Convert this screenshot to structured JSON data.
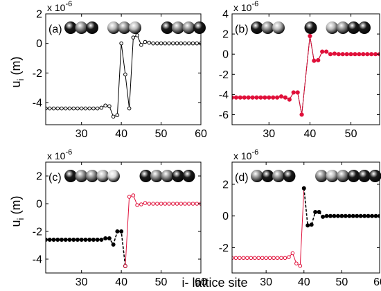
{
  "figure": {
    "shared_ylabel": "u",
    "shared_ylabel_sub": "i",
    "shared_ylabel_unit": " (m)",
    "shared_xlabel": "i- lattice site"
  },
  "chart_data": [
    {
      "type": "line",
      "panel_label": "(a)",
      "exponent_label": "x 10",
      "exponent_power": "-6",
      "xlim": [
        21,
        60
      ],
      "ylim": [
        -5.5,
        2
      ],
      "xticks": [
        30,
        40,
        50,
        60
      ],
      "yticks": [
        -4,
        -2,
        0,
        2
      ],
      "ytick_labels": [
        "-4",
        "-2",
        "0",
        "2"
      ],
      "ylabel_shown": true,
      "spheres": [
        "#1a1a1a",
        "#8c8c8c",
        "#1a1a1a",
        null,
        "#b8b8b8",
        "#8c8c8c",
        "#b8b8b8",
        null,
        null,
        "#1a1a1a",
        "#8c8c8c",
        "#8c8c8c",
        "#1a1a1a"
      ],
      "series": [
        {
          "color": "#000000",
          "marker_fill": "#ffffff",
          "marker_size": 2.3,
          "line_width": 1.0,
          "dashed": false,
          "x": [
            21,
            22,
            23,
            24,
            25,
            26,
            27,
            28,
            29,
            30,
            31,
            32,
            33,
            34,
            35,
            36,
            37,
            38,
            39,
            40,
            41,
            42,
            43,
            44,
            45,
            46,
            47,
            48,
            49,
            50,
            51,
            52,
            53,
            54,
            55,
            56,
            57,
            58,
            59,
            60
          ],
          "y": [
            -4.4,
            -4.4,
            -4.4,
            -4.4,
            -4.4,
            -4.4,
            -4.4,
            -4.4,
            -4.4,
            -4.4,
            -4.4,
            -4.4,
            -4.4,
            -4.4,
            -4.35,
            -4.2,
            -4.25,
            -4.95,
            -4.85,
            0,
            -2.1,
            -4.4,
            0.4,
            0.55,
            -0.1,
            0.1,
            0.05,
            0,
            0,
            0,
            0,
            0,
            0,
            0,
            0,
            0,
            0,
            0,
            0,
            0
          ]
        }
      ]
    },
    {
      "type": "line",
      "panel_label": "(b)",
      "exponent_label": "x 10",
      "exponent_power": "-6",
      "xlim": [
        21,
        57
      ],
      "ylim": [
        -7,
        4
      ],
      "xticks": [
        30,
        40,
        50
      ],
      "yticks": [
        -6,
        -4,
        -2,
        0,
        2,
        4
      ],
      "ytick_labels": [
        "-6",
        "-4",
        "-2",
        "0",
        "2",
        "4"
      ],
      "ylabel_shown": false,
      "spheres": [
        "#1a1a1a",
        "#8c8c8c",
        "#b8b8b8",
        null,
        null,
        "#1a1a1a",
        null,
        "#b8b8b8",
        "#8c8c8c",
        "#1a1a1a",
        "#1a1a1a"
      ],
      "series": [
        {
          "color": "#000000",
          "marker_fill": "#000000",
          "marker_size": 0,
          "line_width": 1.0,
          "dashed": false,
          "x": [
            21,
            22,
            23,
            24,
            25,
            26,
            27,
            28,
            29,
            30,
            31,
            32,
            33,
            34,
            35,
            36,
            37,
            38,
            39,
            40,
            41,
            42,
            43,
            44,
            45,
            46,
            47,
            48,
            49,
            50,
            51,
            52,
            53,
            54,
            55,
            56,
            57
          ],
          "y": [
            -4.3,
            -4.3,
            -4.3,
            -4.3,
            -4.3,
            -4.3,
            -4.3,
            -4.3,
            -4.3,
            -4.3,
            -4.3,
            -4.3,
            -4.2,
            -4.3,
            -4.5,
            -3.8,
            -3.8,
            -6.0,
            -2.1,
            1.8,
            -0.65,
            -0.6,
            0.25,
            0.25,
            0,
            0.05,
            0,
            0,
            0,
            0,
            0,
            0,
            0,
            0,
            0,
            0,
            0
          ]
        },
        {
          "color": "#e0103a",
          "marker_fill": "#e0103a",
          "marker_size": 2.6,
          "line_width": 1.0,
          "dashed": false,
          "x": [
            21,
            22,
            23,
            24,
            25,
            26,
            27,
            28,
            29,
            30,
            31,
            32,
            33,
            34,
            35,
            36,
            37,
            38,
            40,
            41,
            42,
            43,
            44,
            45,
            46,
            47,
            48,
            49,
            50,
            51,
            52,
            53,
            54,
            55,
            56,
            57
          ],
          "y": [
            -4.3,
            -4.3,
            -4.3,
            -4.3,
            -4.3,
            -4.3,
            -4.3,
            -4.3,
            -4.3,
            -4.3,
            -4.3,
            -4.3,
            -4.2,
            -4.3,
            -4.5,
            -3.8,
            -3.8,
            -6.0,
            1.8,
            -0.65,
            -0.6,
            0.25,
            0.25,
            0,
            0.05,
            0,
            0,
            0,
            0,
            0,
            0,
            0,
            0,
            0,
            0,
            0
          ]
        }
      ]
    },
    {
      "type": "line",
      "panel_label": "(c)",
      "exponent_label": "x 10",
      "exponent_power": "-6",
      "xlim": [
        21,
        60
      ],
      "ylim": [
        -5,
        3
      ],
      "xticks": [
        30,
        40,
        50,
        60
      ],
      "yticks": [
        -4,
        -2,
        0,
        2
      ],
      "ytick_labels": [
        "-4",
        "-2",
        "0",
        "2"
      ],
      "ylabel_shown": true,
      "spheres": [
        "#1a1a1a",
        "#8c8c8c",
        "#8c8c8c",
        "#b8b8b8",
        "#d9d9d9",
        null,
        null,
        "#1a1a1a",
        "#8c8c8c",
        "#8c8c8c",
        "#1a1a1a",
        "#1a1a1a"
      ],
      "series": [
        {
          "color": "#000000",
          "marker_fill": "#000000",
          "marker_size": 2.5,
          "line_width": 1.6,
          "dashed": true,
          "x": [
            21,
            22,
            23,
            24,
            25,
            26,
            27,
            28,
            29,
            30,
            31,
            32,
            33,
            34,
            35,
            36,
            37,
            38,
            39,
            40,
            41
          ],
          "y": [
            -2.6,
            -2.6,
            -2.6,
            -2.6,
            -2.6,
            -2.6,
            -2.6,
            -2.6,
            -2.6,
            -2.6,
            -2.6,
            -2.6,
            -2.6,
            -2.6,
            -2.6,
            -2.5,
            -2.5,
            -2.95,
            -2.0,
            -2.0,
            -4.5
          ]
        },
        {
          "color": "#e0103a",
          "marker_fill": "#ffffff",
          "marker_size": 2.3,
          "line_width": 1.0,
          "dashed": false,
          "x": [
            41,
            42,
            43,
            44,
            45,
            46,
            47,
            48,
            49,
            50,
            51,
            52,
            53,
            54,
            55,
            56,
            57,
            58,
            59,
            60
          ],
          "y": [
            -4.5,
            0.5,
            0.6,
            -0.1,
            -0.05,
            0.05,
            0,
            0,
            0,
            0,
            0,
            0,
            0,
            0,
            0,
            0,
            0,
            0,
            0,
            0
          ]
        }
      ]
    },
    {
      "type": "line",
      "panel_label": "(d)",
      "exponent_label": "x 10",
      "exponent_power": "-6",
      "xlim": [
        21,
        60
      ],
      "ylim": [
        -3.6,
        3.4
      ],
      "xticks": [
        30,
        40,
        50,
        60
      ],
      "yticks": [
        -2,
        0,
        2
      ],
      "ytick_labels": [
        "-2",
        "0",
        "2"
      ],
      "ylabel_shown": false,
      "spheres": [
        "#8c8c8c",
        "#1a1a1a",
        "#8c8c8c",
        "#1a1a1a",
        null,
        null,
        "#8c8c8c",
        "#b8b8b8",
        "#8c8c8c",
        "#1a1a1a",
        "#1a1a1a",
        "#1a1a1a"
      ],
      "series": [
        {
          "color": "#e0103a",
          "marker_fill": "#ffffff",
          "marker_size": 2.3,
          "line_width": 1.0,
          "dashed": false,
          "x": [
            21,
            22,
            23,
            24,
            25,
            26,
            27,
            28,
            29,
            30,
            31,
            32,
            33,
            34,
            35,
            36,
            37,
            38,
            39,
            40
          ],
          "y": [
            -2.65,
            -2.65,
            -2.65,
            -2.65,
            -2.65,
            -2.65,
            -2.65,
            -2.65,
            -2.65,
            -2.65,
            -2.65,
            -2.65,
            -2.65,
            -2.65,
            -2.65,
            -2.6,
            -2.35,
            -3.0,
            -3.15,
            1.75
          ]
        },
        {
          "color": "#000000",
          "marker_fill": "#000000",
          "marker_size": 2.5,
          "line_width": 1.6,
          "dashed": true,
          "x": [
            40,
            41,
            42,
            43,
            44,
            45,
            46,
            47,
            48,
            49,
            50,
            51,
            52,
            53,
            54,
            55,
            56,
            57,
            58,
            59,
            60
          ],
          "y": [
            1.75,
            -0.6,
            -0.55,
            0.25,
            0.25,
            -0.05,
            0,
            0,
            0,
            0,
            0,
            0,
            0,
            0,
            0,
            0,
            0,
            0,
            0,
            0,
            0
          ]
        }
      ]
    }
  ]
}
